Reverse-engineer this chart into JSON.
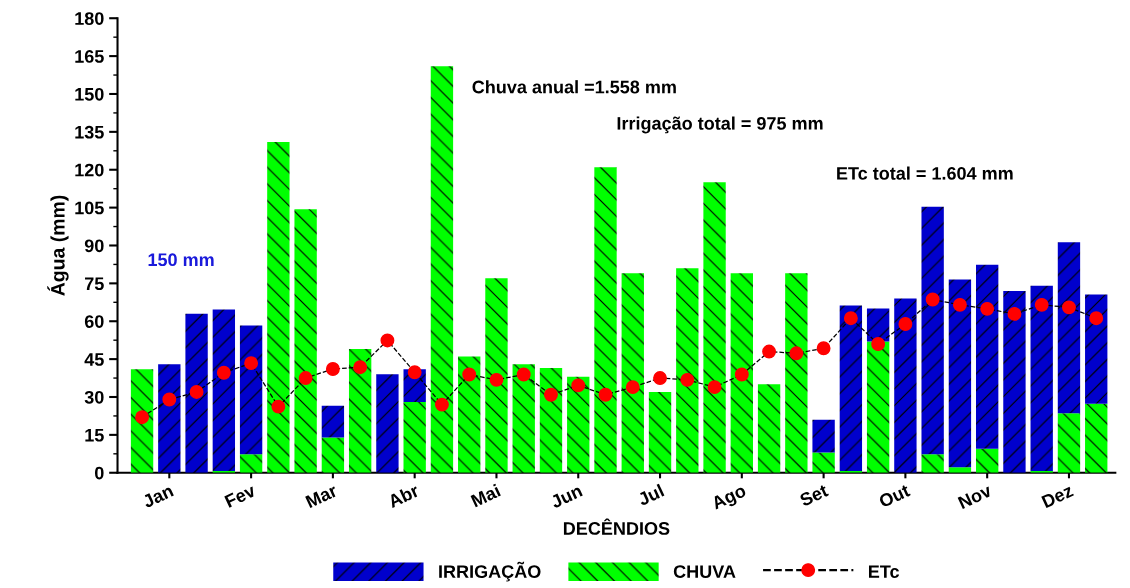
{
  "chart_data": {
    "type": "bar",
    "stacked": true,
    "xlabel": "DECÊNDIOS",
    "ylabel": "Água (mm)",
    "categories": [
      null,
      "Jan",
      null,
      null,
      "Fev",
      null,
      null,
      "Mar",
      null,
      null,
      "Abr",
      null,
      null,
      "Mai",
      null,
      null,
      "Jun",
      null,
      null,
      "Jul",
      null,
      null,
      "Ago",
      null,
      null,
      "Set",
      null,
      null,
      "Out",
      null,
      null,
      "Nov",
      null,
      null,
      "Dez",
      null
    ],
    "series": [
      {
        "name": "CHUVA",
        "color": "#00ff00",
        "values": [
          41,
          0,
          0,
          0.7,
          7.3,
          131,
          104.4,
          14,
          49,
          0,
          28,
          161,
          46,
          77,
          43,
          41.5,
          38,
          121,
          79,
          32,
          81,
          115,
          79,
          35,
          79,
          8,
          0.7,
          52,
          0,
          7.3,
          2.2,
          9.5,
          0,
          0.7,
          23.6,
          27.3
        ]
      },
      {
        "name": "IRRIGAÇÃO",
        "color": "#0000cc",
        "values": [
          0,
          43,
          63,
          64,
          51,
          0,
          0,
          12.5,
          0,
          39,
          13,
          0,
          0,
          0,
          0,
          0,
          0,
          0,
          0,
          0,
          0,
          0,
          0,
          0,
          0,
          13,
          65.5,
          13,
          69,
          98,
          74.3,
          72.9,
          72,
          73.4,
          67.7,
          43.3
        ]
      },
      {
        "name": "ETc",
        "type": "line",
        "color": "#ff0000",
        "marker": "circle",
        "line_style": "dashed",
        "values": [
          22,
          29,
          32,
          39.6,
          43.4,
          26.2,
          37.5,
          41.1,
          41.8,
          52.4,
          39.8,
          27,
          38.9,
          36.8,
          38.9,
          30.9,
          34.6,
          30.9,
          33.9,
          37.5,
          36.8,
          33.9,
          38.9,
          48,
          47.3,
          49.3,
          61.2,
          51,
          58.9,
          68.6,
          66.5,
          64.9,
          62.9,
          66.5,
          65.5,
          61.2
        ]
      }
    ],
    "ylim": [
      0,
      180
    ],
    "yticks": [
      0,
      15,
      30,
      45,
      60,
      75,
      90,
      105,
      120,
      135,
      150,
      165,
      180
    ],
    "grid": false,
    "legend": "bottom",
    "annotations": [
      "150 mm",
      "Chuva anual =1.558 mm",
      "Irrigação total = 975 mm",
      "ETc total = 1.604 mm"
    ]
  }
}
